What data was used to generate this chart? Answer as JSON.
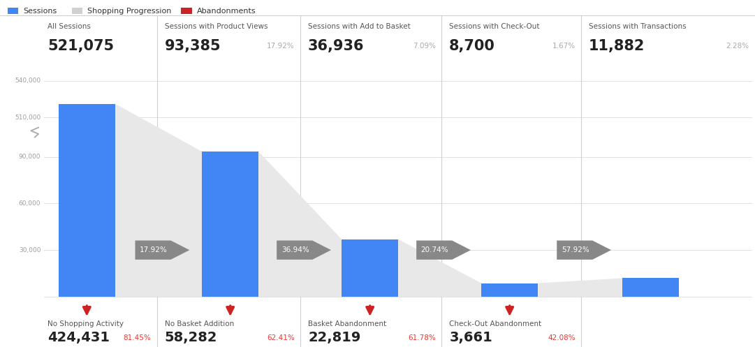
{
  "sessions": [
    521075,
    93385,
    36936,
    8700,
    11882
  ],
  "session_labels": [
    "All Sessions",
    "Sessions with Product Views",
    "Sessions with Add to Basket",
    "Sessions with Check-Out",
    "Sessions with Transactions"
  ],
  "session_values_str": [
    "521,075",
    "93,385",
    "36,936",
    "8,700",
    "11,882"
  ],
  "session_pct": [
    "",
    "17.92%",
    "7.09%",
    "1.67%",
    "2.28%"
  ],
  "abandonment_labels": [
    "No Shopping Activity",
    "No Basket Addition",
    "Basket Abandonment",
    "Check-Out Abandonment"
  ],
  "abandonment_values_str": [
    "424,431",
    "58,282",
    "22,819",
    "3,661"
  ],
  "abandonment_pct": [
    "81.45%",
    "62.41%",
    "61.78%",
    "42.08%"
  ],
  "funnel_pct": [
    "17.92%",
    "36.94%",
    "20.74%",
    "57.92%"
  ],
  "bg_color": "#ffffff",
  "bar_color": "#4285f4",
  "funnel_color": "#e8e8e8",
  "abandon_arrow_color": "#cc2222",
  "grid_color": "#e0e0e0",
  "sep_color": "#d0d0d0",
  "abandon_pct_color": "#e53935",
  "legend_sessions_color": "#4285f4",
  "legend_shopping_color": "#d0d0d0",
  "legend_abandon_color": "#cc2222"
}
